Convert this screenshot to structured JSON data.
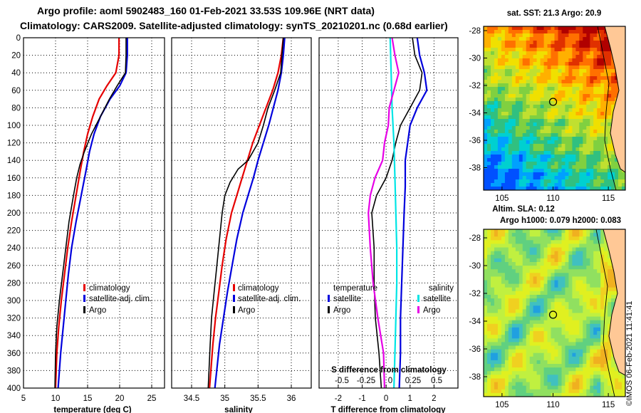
{
  "header": {
    "line1": "Argo profile: aoml 5902483_160 01-Feb-2021 33.53S 109.96E (NRT data)",
    "line2": "Climatology: CARS2009. Satellite-adjusted climatology: synTS_20210201.nc (0.68d earlier)"
  },
  "colors": {
    "climatology": "#e60000",
    "satellite": "#0000dd",
    "argo": "#000000",
    "satellite_s": "#00e5e5",
    "argo_s": "#e600e6"
  },
  "chart_data": [
    {
      "type": "line",
      "name": "temperature",
      "xlabel": "temperature (deg C)",
      "xlim": [
        5,
        27
      ],
      "xticks": [
        5,
        10,
        15,
        20,
        25
      ],
      "ylim": [
        0,
        400
      ],
      "yticks": [
        0,
        20,
        40,
        60,
        80,
        100,
        120,
        140,
        160,
        180,
        200,
        220,
        240,
        260,
        280,
        300,
        320,
        340,
        360,
        380,
        400
      ],
      "legend": [
        "climatology",
        "satellite-adj. clim.",
        "Argo"
      ],
      "series": [
        {
          "name": "climatology",
          "depth": [
            0,
            20,
            40,
            55,
            70,
            90,
            110,
            130,
            150,
            180,
            210,
            240,
            270,
            300,
            330,
            360,
            400
          ],
          "values": [
            19.9,
            19.9,
            19.4,
            18.0,
            16.8,
            15.8,
            15.0,
            14.4,
            13.9,
            13.2,
            12.5,
            11.9,
            11.4,
            10.9,
            10.5,
            10.2,
            10.0
          ]
        },
        {
          "name": "satellite-adj. clim.",
          "depth": [
            0,
            20,
            40,
            55,
            70,
            90,
            110,
            130,
            150,
            180,
            210,
            240,
            270,
            300,
            330,
            360,
            400
          ],
          "values": [
            21.2,
            21.2,
            21.0,
            20.0,
            18.5,
            17.0,
            16.0,
            15.3,
            14.8,
            14.0,
            13.2,
            12.5,
            12.0,
            11.6,
            11.2,
            10.8,
            10.4
          ]
        },
        {
          "name": "Argo",
          "depth": [
            0,
            20,
            40,
            55,
            70,
            90,
            110,
            130,
            145,
            160,
            180,
            210,
            240,
            270,
            300,
            330,
            360,
            400
          ],
          "values": [
            21.0,
            21.0,
            20.9,
            19.6,
            18.4,
            17.0,
            15.6,
            14.5,
            13.8,
            13.3,
            12.8,
            12.1,
            11.6,
            11.1,
            10.6,
            10.2,
            10.0,
            9.9
          ]
        }
      ]
    },
    {
      "type": "line",
      "name": "salinity",
      "xlabel": "salinity",
      "xlim": [
        34.2,
        36.3
      ],
      "xticks": [
        34.5,
        35,
        35.5,
        36
      ],
      "xtick_labels": [
        "34.5",
        "35",
        "35.5",
        "36"
      ],
      "ylim": [
        0,
        400
      ],
      "legend": [
        "climatology",
        "satellite-adj. clim.",
        "Argo"
      ],
      "series": [
        {
          "name": "climatology",
          "depth": [
            0,
            20,
            40,
            60,
            80,
            100,
            120,
            140,
            160,
            180,
            200,
            230,
            260,
            290,
            320,
            350,
            400
          ],
          "values": [
            35.88,
            35.85,
            35.8,
            35.72,
            35.62,
            35.52,
            35.42,
            35.34,
            35.26,
            35.18,
            35.1,
            35.02,
            34.96,
            34.91,
            34.86,
            34.82,
            34.77
          ]
        },
        {
          "name": "satellite-adj. clim.",
          "depth": [
            0,
            20,
            40,
            60,
            80,
            100,
            120,
            140,
            160,
            180,
            200,
            230,
            260,
            290,
            320,
            350,
            400
          ],
          "values": [
            35.9,
            35.88,
            35.85,
            35.8,
            35.73,
            35.66,
            35.58,
            35.5,
            35.43,
            35.35,
            35.27,
            35.18,
            35.11,
            35.04,
            34.98,
            34.92,
            34.85
          ]
        },
        {
          "name": "Argo",
          "depth": [
            0,
            20,
            40,
            60,
            80,
            100,
            120,
            140,
            150,
            165,
            180,
            200,
            230,
            260,
            290,
            320,
            350,
            400
          ],
          "values": [
            35.88,
            35.86,
            35.84,
            35.75,
            35.65,
            35.58,
            35.5,
            35.35,
            35.2,
            35.08,
            35.0,
            34.96,
            34.92,
            34.88,
            34.84,
            34.8,
            34.78,
            34.75
          ]
        }
      ]
    },
    {
      "type": "line",
      "name": "differences",
      "xlabel": "T difference from climatology",
      "top_label": "S difference from climatology",
      "xlim": [
        -2.8,
        3.0
      ],
      "xticks": [
        -2,
        -1,
        0,
        1,
        2
      ],
      "xtick_labels": [
        "-2",
        "-1",
        "0",
        "1",
        "2"
      ],
      "top_ticks": [
        "-0.5",
        "-0.25",
        "0",
        "0.25",
        "0.5"
      ],
      "ylim": [
        0,
        400
      ],
      "legend_titles": [
        "temperature",
        "salinity"
      ],
      "legend_temperature": [
        "satellite",
        "Argo"
      ],
      "legend_salinity": [
        "satellite",
        "Argo"
      ],
      "series": [
        {
          "name": "T satellite",
          "depth": [
            0,
            20,
            40,
            60,
            80,
            100,
            120,
            140,
            170,
            200,
            240,
            280,
            320,
            360,
            400
          ],
          "values": [
            1.3,
            1.4,
            1.6,
            1.7,
            1.3,
            1.0,
            0.9,
            0.8,
            0.8,
            0.75,
            0.7,
            0.65,
            0.6,
            0.6,
            0.55
          ]
        },
        {
          "name": "T Argo",
          "depth": [
            0,
            20,
            40,
            60,
            80,
            100,
            120,
            140,
            160,
            180,
            200,
            240,
            280,
            320,
            360,
            400
          ],
          "values": [
            1.1,
            1.2,
            1.5,
            1.4,
            1.0,
            0.6,
            0.4,
            0.25,
            0.0,
            -0.4,
            -0.6,
            -0.5,
            -0.5,
            -0.45,
            -0.3,
            -0.2
          ]
        },
        {
          "name": "S satellite",
          "depth": [
            0,
            40,
            80,
            120,
            160,
            200,
            240,
            280,
            320,
            360,
            400
          ],
          "values": [
            0.01,
            0.02,
            0.03,
            0.05,
            0.06,
            0.07,
            0.08,
            0.08,
            0.07,
            0.06,
            0.05
          ]
        },
        {
          "name": "S Argo",
          "depth": [
            0,
            20,
            40,
            60,
            80,
            100,
            120,
            140,
            160,
            180,
            200,
            240,
            280,
            320,
            360,
            400
          ],
          "values": [
            0.03,
            0.06,
            0.1,
            0.05,
            0.0,
            -0.01,
            -0.05,
            -0.07,
            -0.15,
            -0.2,
            -0.22,
            -0.2,
            -0.17,
            -0.12,
            -0.06,
            -0.05
          ]
        }
      ]
    }
  ],
  "maps": [
    {
      "title": "sat. SST: 21.3 Argo: 20.9",
      "xticks": [
        "105",
        "110",
        "115"
      ],
      "yticks": [
        "-28",
        "-30",
        "-32",
        "-34",
        "-36",
        "-38"
      ]
    },
    {
      "title_line1": "Altim. SLA: 0.12",
      "title_line2": "Argo h1000: 0.079 h2000: 0.083",
      "xticks": [
        "105",
        "110",
        "115"
      ],
      "yticks": [
        "-28",
        "-30",
        "-32",
        "-34",
        "-36",
        "-38"
      ]
    }
  ],
  "stamp": "©IMOS 06-Feb-2021 11:41:41"
}
